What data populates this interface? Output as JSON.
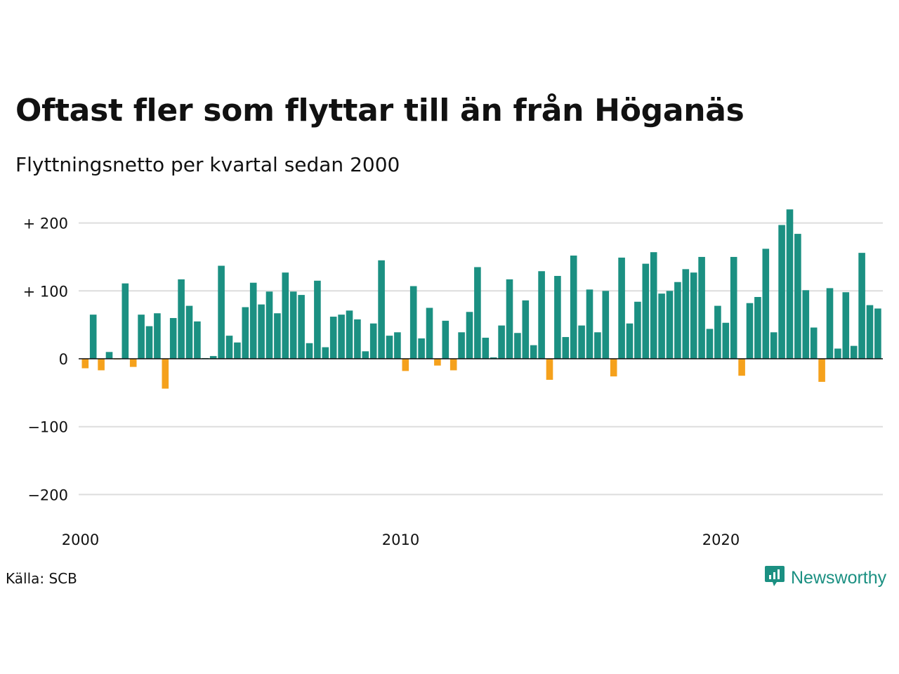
{
  "header": {
    "title": "Oftast fler som flyttar till än från Höganäs",
    "subtitle": "Flyttningsnetto per kvartal sedan 2000"
  },
  "footer": {
    "source": "Källa: SCB",
    "brand": "Newsworthy",
    "brand_icon": "chart-logo-icon"
  },
  "colors": {
    "positive": "#1b9082",
    "negative": "#f5a11c",
    "grid": "#dddddd",
    "axis": "#111111"
  },
  "chart_data": {
    "type": "bar",
    "title": "Oftast fler som flyttar till än från Höganäs",
    "subtitle": "Flyttningsnetto per kvartal sedan 2000",
    "xlabel": "",
    "ylabel": "",
    "ylim": [
      -200,
      220
    ],
    "yticks": [
      200,
      100,
      0,
      -100,
      -200
    ],
    "ytick_labels": [
      "+ 200",
      "+ 100",
      "0",
      "−100",
      "−200"
    ],
    "xticks": [
      "2000",
      "2010",
      "2020"
    ],
    "x_start": "2000-Q1",
    "x_interval": "quarter",
    "grid": true,
    "legend": "none",
    "values": [
      -14,
      65,
      -17,
      10,
      -1,
      111,
      -12,
      65,
      48,
      67,
      -44,
      60,
      117,
      78,
      55,
      1,
      4,
      137,
      34,
      24,
      76,
      112,
      80,
      99,
      67,
      127,
      99,
      94,
      23,
      115,
      17,
      62,
      65,
      71,
      58,
      11,
      52,
      145,
      34,
      39,
      -18,
      107,
      30,
      75,
      -10,
      56,
      -17,
      39,
      69,
      135,
      31,
      2,
      49,
      117,
      38,
      86,
      20,
      129,
      -31,
      122,
      32,
      152,
      49,
      102,
      39,
      100,
      -26,
      149,
      52,
      84,
      140,
      157,
      96,
      100,
      113,
      132,
      127,
      150,
      44,
      78,
      53,
      150,
      -25,
      82,
      91,
      162,
      39,
      197,
      220,
      184,
      101,
      46,
      -34,
      104,
      15,
      98,
      19,
      156,
      79,
      74
    ]
  }
}
